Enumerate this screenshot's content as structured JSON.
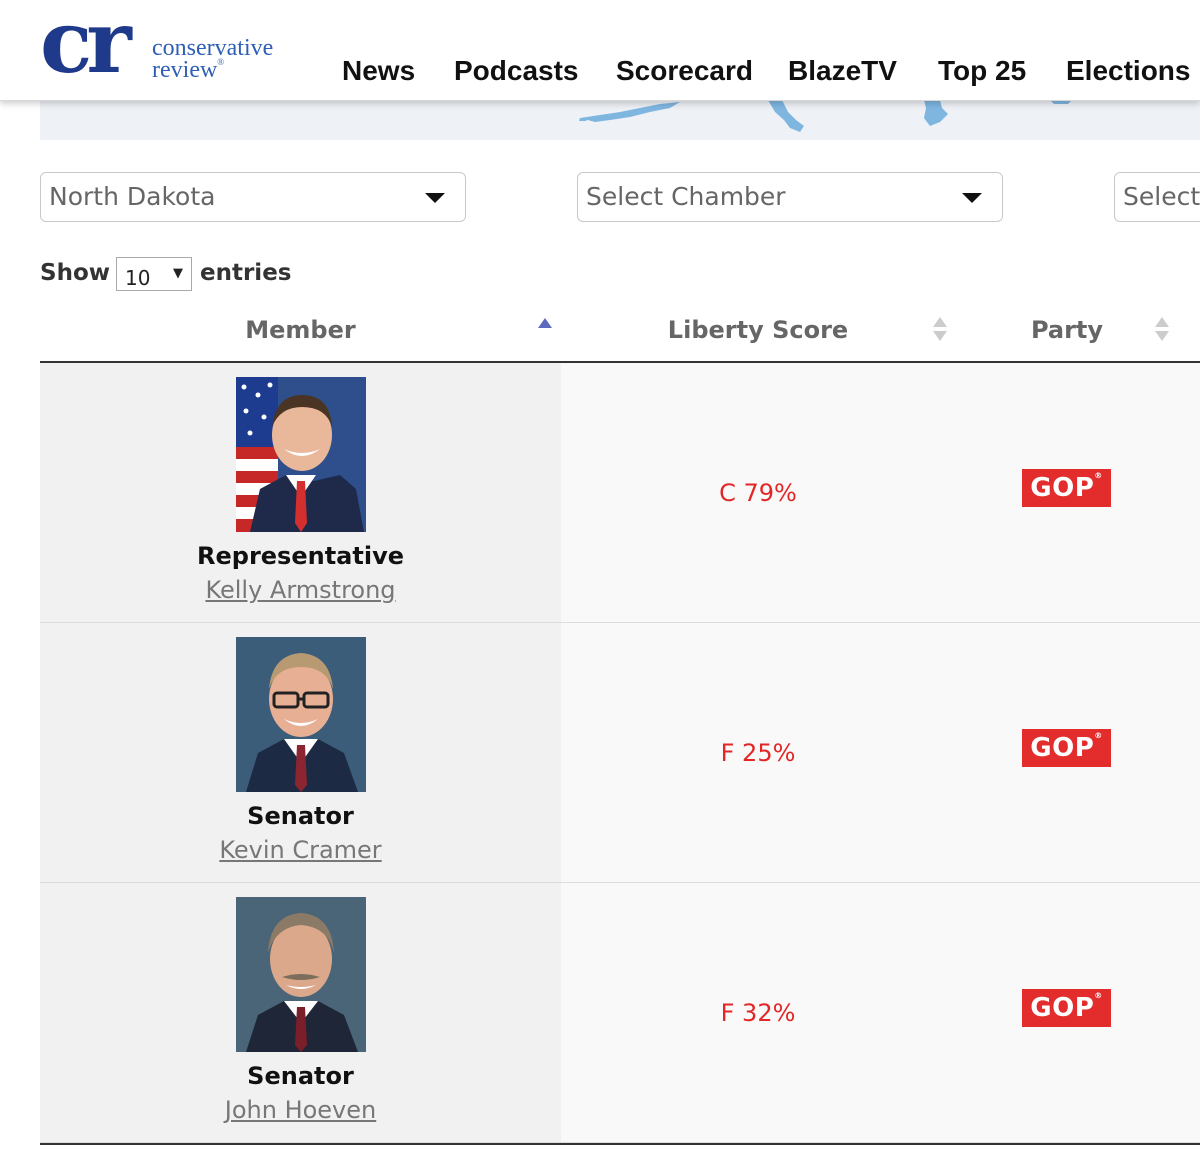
{
  "colors": {
    "brand_navy": "#1f3a8a",
    "brand_blue": "#2f5fb5",
    "score_red": "#e32727",
    "gop_red": "#e32d2d",
    "map_water": "#7fb6e0"
  },
  "logo": {
    "mark": "cr",
    "line1": "conservative",
    "line2": "review",
    "reg": "®"
  },
  "nav": [
    "News",
    "Podcasts",
    "Scorecard",
    "BlazeTV",
    "Top 25",
    "Elections"
  ],
  "filters": {
    "state": "North Dakota",
    "chamber": "Select Chamber",
    "third": "Select"
  },
  "length": {
    "show": "Show",
    "value": "10",
    "caret": "▼",
    "entries": "entries"
  },
  "table": {
    "headers": {
      "member": "Member",
      "score": "Liberty Score",
      "party": "Party"
    },
    "rows": [
      {
        "title": "Representative",
        "name": "Kelly Armstrong",
        "score": "C 79%",
        "party": "GOP",
        "portrait": "kelly-armstrong-portrait"
      },
      {
        "title": "Senator",
        "name": "Kevin Cramer",
        "score": "F 25%",
        "party": "GOP",
        "portrait": "kevin-cramer-portrait"
      },
      {
        "title": "Senator",
        "name": "John Hoeven",
        "score": "F 32%",
        "party": "GOP",
        "portrait": "john-hoeven-portrait"
      }
    ]
  }
}
